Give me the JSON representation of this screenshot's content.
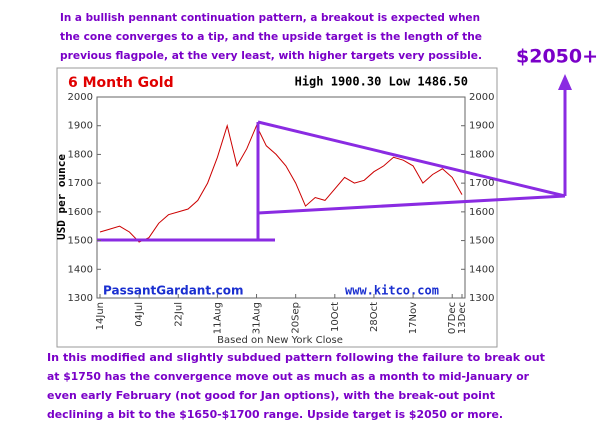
{
  "chart_data": {
    "type": "line",
    "title": "6 Month Gold",
    "subtitle": "High 1900.30 Low 1486.50",
    "ylabel": "USD per ounce",
    "xlabel": "Based on New York Close",
    "sources": [
      "PassantGardant.com",
      "www.kitco.com"
    ],
    "annotations": {
      "top": [
        "In a bullish pennant continuation pattern, a breakout is expected when",
        "the cone converges to a tip, and the upside target is the length of the",
        "previous flagpole, at the very least, with higher targets very possible."
      ],
      "target": "$2050+",
      "bottom": [
        "In this modified and slightly subdued pattern following the failure to break out",
        "at $1750 has the convergence move out as much as a month to mid-January or",
        "even early February (not good for Jan options), with the break-out point",
        "declining  a bit to the $1650-$1700 range.  Upside target is $2050 or more."
      ]
    },
    "categories": [
      "14Jun",
      null,
      null,
      null,
      "04Jul",
      null,
      null,
      null,
      "22Jul",
      null,
      null,
      null,
      "11Aug",
      null,
      null,
      null,
      "31Aug",
      null,
      null,
      null,
      "20Sep",
      null,
      null,
      null,
      "10Oct",
      null,
      null,
      null,
      "28Oct",
      null,
      null,
      null,
      "17Nov",
      null,
      null,
      null,
      "07Dec",
      "13Dec"
    ],
    "values": [
      1530,
      1540,
      1550,
      1530,
      1495,
      1510,
      1560,
      1590,
      1600,
      1610,
      1640,
      1700,
      1790,
      1900,
      1760,
      1820,
      1900,
      1830,
      1800,
      1760,
      1700,
      1620,
      1650,
      1640,
      1680,
      1720,
      1700,
      1710,
      1740,
      1760,
      1790,
      1780,
      1760,
      1700,
      1730,
      1750,
      1720,
      1660
    ],
    "color": "#cc0000",
    "ylim": [
      1300,
      2000
    ],
    "yticks": [
      1300,
      1400,
      1500,
      1600,
      1700,
      1800,
      1900,
      2000
    ]
  }
}
